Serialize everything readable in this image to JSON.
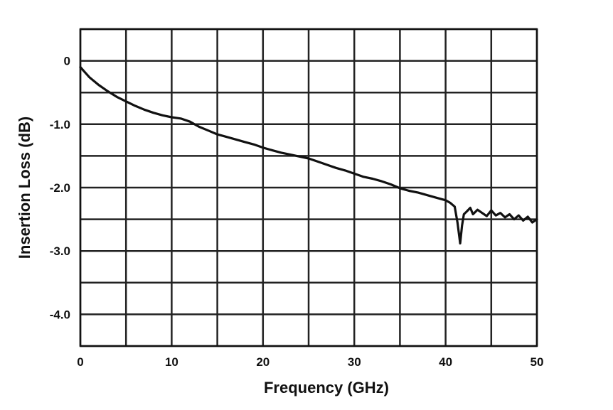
{
  "chart_data": {
    "type": "line",
    "title": "",
    "xlabel": "Frequency (GHz)",
    "ylabel": "Insertion Loss (dB)",
    "xlim": [
      0,
      50
    ],
    "ylim": [
      -4.5,
      0.5
    ],
    "grid": true,
    "x_ticks": [
      {
        "value": 0,
        "label": "0"
      },
      {
        "value": 10,
        "label": "10"
      },
      {
        "value": 20,
        "label": "20"
      },
      {
        "value": 30,
        "label": "30"
      },
      {
        "value": 40,
        "label": "40"
      },
      {
        "value": 50,
        "label": "50"
      }
    ],
    "y_ticks": [
      {
        "value": 0,
        "label": "0"
      },
      {
        "value": -1,
        "label": "-1.0"
      },
      {
        "value": -2,
        "label": "-2.0"
      },
      {
        "value": -3,
        "label": "-3.0"
      },
      {
        "value": -4,
        "label": "-4.0"
      }
    ],
    "x_gridlines": [
      0,
      5,
      10,
      15,
      20,
      25,
      30,
      35,
      40,
      45,
      50
    ],
    "y_gridlines": [
      0.5,
      0,
      -0.5,
      -1,
      -1.5,
      -2,
      -2.5,
      -3,
      -3.5,
      -4,
      -4.5
    ],
    "series": [
      {
        "line_color": "#111111",
        "x": [
          0,
          0.5,
          1,
          2,
          3,
          4,
          5,
          6,
          7,
          8,
          9,
          10,
          11,
          12,
          13,
          14,
          15,
          16,
          17,
          18,
          19,
          20,
          21,
          22,
          23,
          24,
          25,
          26,
          27,
          28,
          29,
          30,
          31,
          32,
          33,
          34,
          35,
          36,
          37,
          38,
          39,
          40,
          40.5,
          41,
          41.3,
          41.6,
          41.8,
          42,
          42.3,
          42.7,
          43,
          43.5,
          44,
          44.5,
          45,
          45.5,
          46,
          46.5,
          47,
          47.5,
          48,
          48.5,
          49,
          49.5,
          50
        ],
        "y": [
          -0.1,
          -0.18,
          -0.26,
          -0.38,
          -0.48,
          -0.57,
          -0.64,
          -0.71,
          -0.77,
          -0.82,
          -0.86,
          -0.89,
          -0.91,
          -0.96,
          -1.04,
          -1.1,
          -1.16,
          -1.2,
          -1.24,
          -1.28,
          -1.32,
          -1.37,
          -1.41,
          -1.45,
          -1.48,
          -1.51,
          -1.54,
          -1.59,
          -1.64,
          -1.69,
          -1.73,
          -1.78,
          -1.83,
          -1.86,
          -1.9,
          -1.95,
          -2.01,
          -2.05,
          -2.08,
          -2.12,
          -2.16,
          -2.2,
          -2.24,
          -2.3,
          -2.55,
          -2.88,
          -2.6,
          -2.42,
          -2.38,
          -2.32,
          -2.42,
          -2.35,
          -2.4,
          -2.45,
          -2.36,
          -2.44,
          -2.4,
          -2.47,
          -2.42,
          -2.5,
          -2.44,
          -2.52,
          -2.46,
          -2.55,
          -2.5
        ]
      }
    ]
  }
}
